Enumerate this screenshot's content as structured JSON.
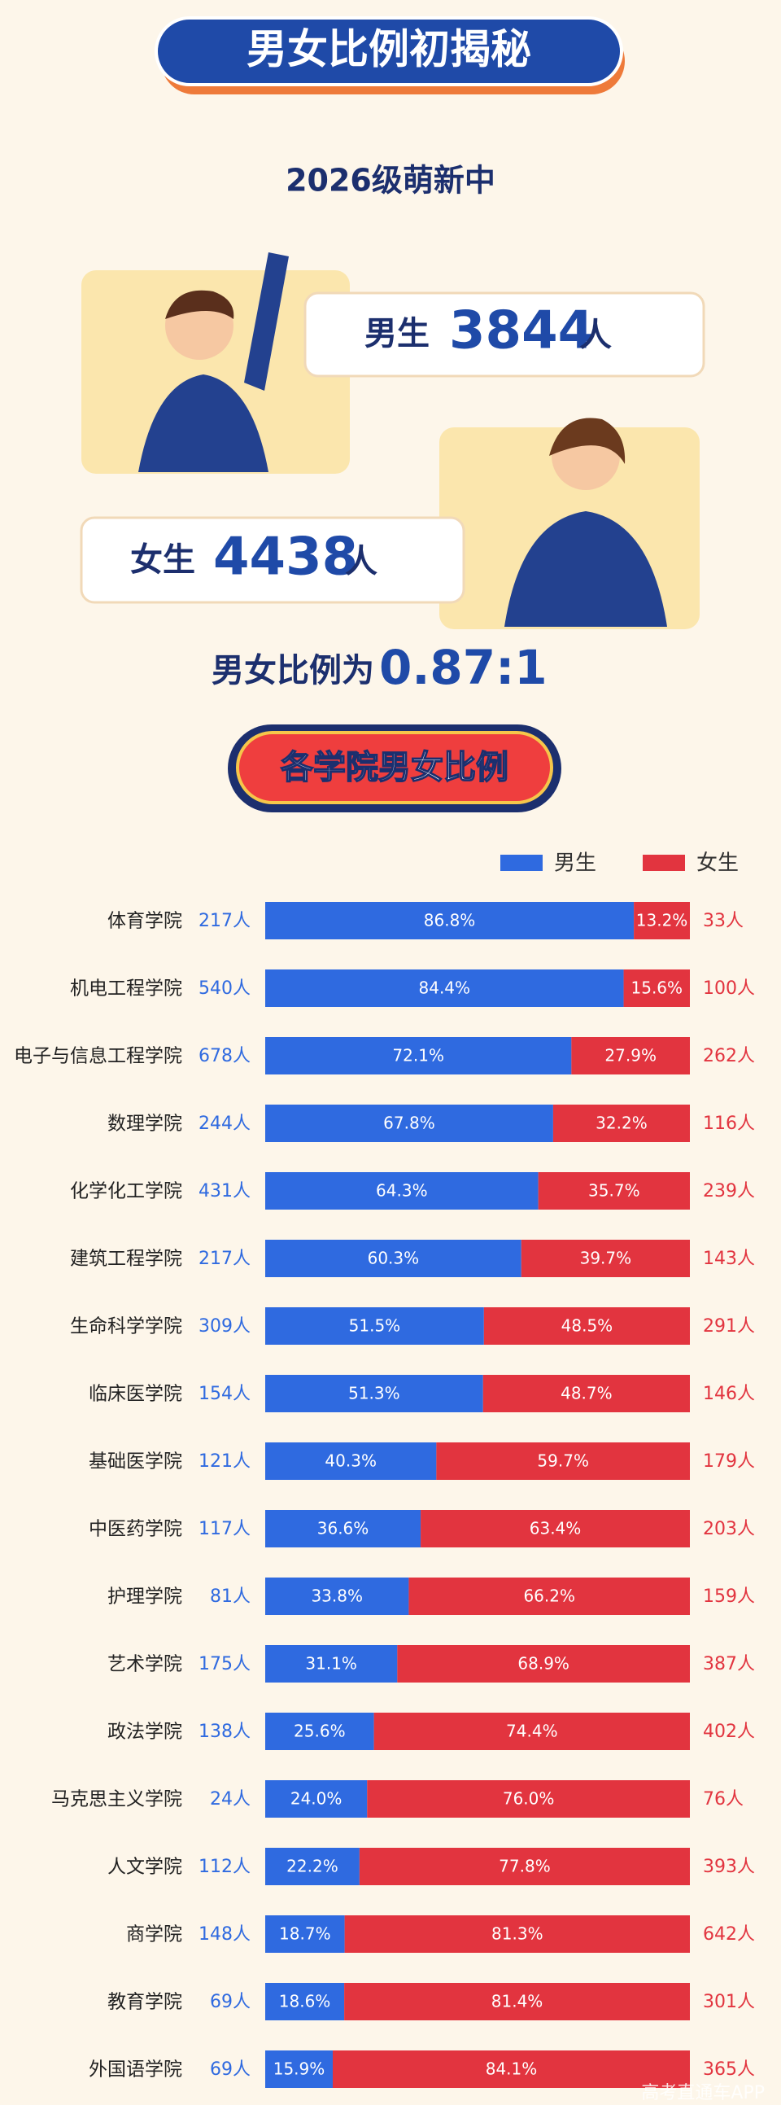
{
  "header": {
    "title": "男女比例初揭秘",
    "subtitle": "2026级萌新中",
    "male_label": "男生",
    "male_count": 3844,
    "male_unit": "人",
    "female_label": "女生",
    "female_count": 4438,
    "female_unit": "人",
    "ratio_label": "男女比例为",
    "ratio": "0.87:1",
    "section_title": "各学院男女比例"
  },
  "chart_data": {
    "type": "stacked_bar_100",
    "orientation": "horizontal",
    "categories": [
      "体育学院",
      "机电工程学院",
      "电子与信息工程学院",
      "数理学院",
      "化学化工学院",
      "建筑工程学院",
      "生命科学学院",
      "临床医学院",
      "基础医学院",
      "中医药学院",
      "护理学院",
      "艺术学院",
      "政法学院",
      "马克思主义学院",
      "人文学院",
      "商学院",
      "教育学院",
      "外国语学院"
    ],
    "xlim": [
      0,
      100
    ],
    "legend": "top-right",
    "series": [
      {
        "name": "男生",
        "color": "#2f6ae0",
        "values": [
          86.8,
          84.4,
          72.1,
          67.8,
          64.3,
          60.3,
          51.5,
          51.3,
          40.3,
          36.6,
          33.8,
          31.1,
          25.6,
          24.0,
          22.2,
          18.7,
          18.6,
          15.9
        ],
        "value_labels": [
          "86.8%",
          "84.4%",
          "72.1%",
          "67.8%",
          "64.3%",
          "60.3%",
          "51.5%",
          "51.3%",
          "40.3%",
          "36.6%",
          "33.8%",
          "31.1%",
          "25.6%",
          "24.0%",
          "22.2%",
          "18.7%",
          "18.6%",
          "15.9%"
        ],
        "count_labels": [
          "217人",
          "540人",
          "678人",
          "244人",
          "431人",
          "217人",
          "309人",
          "154人",
          "121人",
          "117人",
          "81人",
          "175人",
          "138人",
          "24人",
          "112人",
          "148人",
          "69人",
          "69人"
        ]
      },
      {
        "name": "女生",
        "color": "#e2343f",
        "values": [
          13.2,
          15.6,
          27.9,
          32.2,
          35.7,
          39.7,
          48.5,
          48.7,
          59.7,
          63.4,
          66.2,
          68.9,
          74.4,
          76.0,
          77.8,
          81.3,
          81.4,
          84.1
        ],
        "value_labels": [
          "13.2%",
          "15.6%",
          "27.9%",
          "32.2%",
          "35.7%",
          "39.7%",
          "48.5%",
          "48.7%",
          "59.7%",
          "63.4%",
          "66.2%",
          "68.9%",
          "74.4%",
          "76.0%",
          "77.8%",
          "81.3%",
          "81.4%",
          "84.1%"
        ],
        "count_labels": [
          "33人",
          "100人",
          "262人",
          "116人",
          "239人",
          "143人",
          "291人",
          "146人",
          "179人",
          "203人",
          "159人",
          "387人",
          "402人",
          "76人",
          "393人",
          "642人",
          "301人",
          "365人"
        ]
      }
    ]
  },
  "watermark": "高考直通车APP"
}
